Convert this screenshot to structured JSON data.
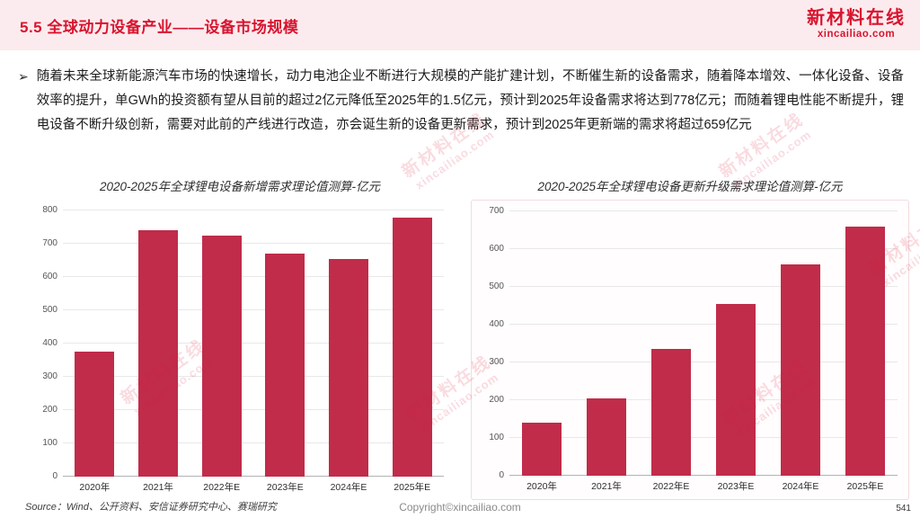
{
  "header": {
    "title": "5.5 全球动力设备产业——设备市场规模",
    "logo_name": "新材料在线",
    "logo_domain": "xincailiao.com"
  },
  "body": {
    "bullet": "➢",
    "paragraph": "随着未来全球新能源汽车市场的快速增长，动力电池企业不断进行大规模的产能扩建计划，不断催生新的设备需求，随着降本增效、一体化设备、设备效率的提升，单GWh的投资额有望从目前的超过2亿元降低至2025年的1.5亿元，预计到2025年设备需求将达到778亿元；而随着锂电性能不断提升，锂电设备不断升级创新，需要对此前的产线进行改造，亦会诞生新的设备更新需求，预计到2025年更新端的需求将超过659亿元"
  },
  "chart_data": [
    {
      "type": "bar",
      "title": "2020-2025年全球锂电设备新增需求理论值测算-亿元",
      "categories": [
        "2020年",
        "2021年",
        "2022年E",
        "2023年E",
        "2024年E",
        "2025年E"
      ],
      "values": [
        375,
        740,
        725,
        670,
        655,
        778
      ],
      "xlabel": "",
      "ylabel": "",
      "ylim": [
        0,
        800
      ],
      "ytick_step": 100,
      "grid": true,
      "legend": "none",
      "bar_color": "#c02c4a"
    },
    {
      "type": "bar",
      "title": "2020-2025年全球锂电设备更新升级需求理论值测算-亿元",
      "categories": [
        "2020年",
        "2021年",
        "2022年E",
        "2023年E",
        "2024年E",
        "2025年E"
      ],
      "values": [
        140,
        205,
        335,
        455,
        560,
        659
      ],
      "xlabel": "",
      "ylabel": "",
      "ylim": [
        0,
        700
      ],
      "ytick_step": 100,
      "grid": true,
      "legend": "none",
      "bar_color": "#c02c4a"
    }
  ],
  "footer": {
    "source": "Source：Wind、公开资料、安信证券研究中心、赛瑞研究",
    "copyright": "Copyright©xincailiao.com",
    "page": "541"
  },
  "watermark": {
    "line1": "新材料在线",
    "line2": "xincailiao.com"
  },
  "colors": {
    "accent_red": "#d9142f",
    "bar_crimson": "#c02c4a",
    "header_pink": "#fcebee"
  }
}
